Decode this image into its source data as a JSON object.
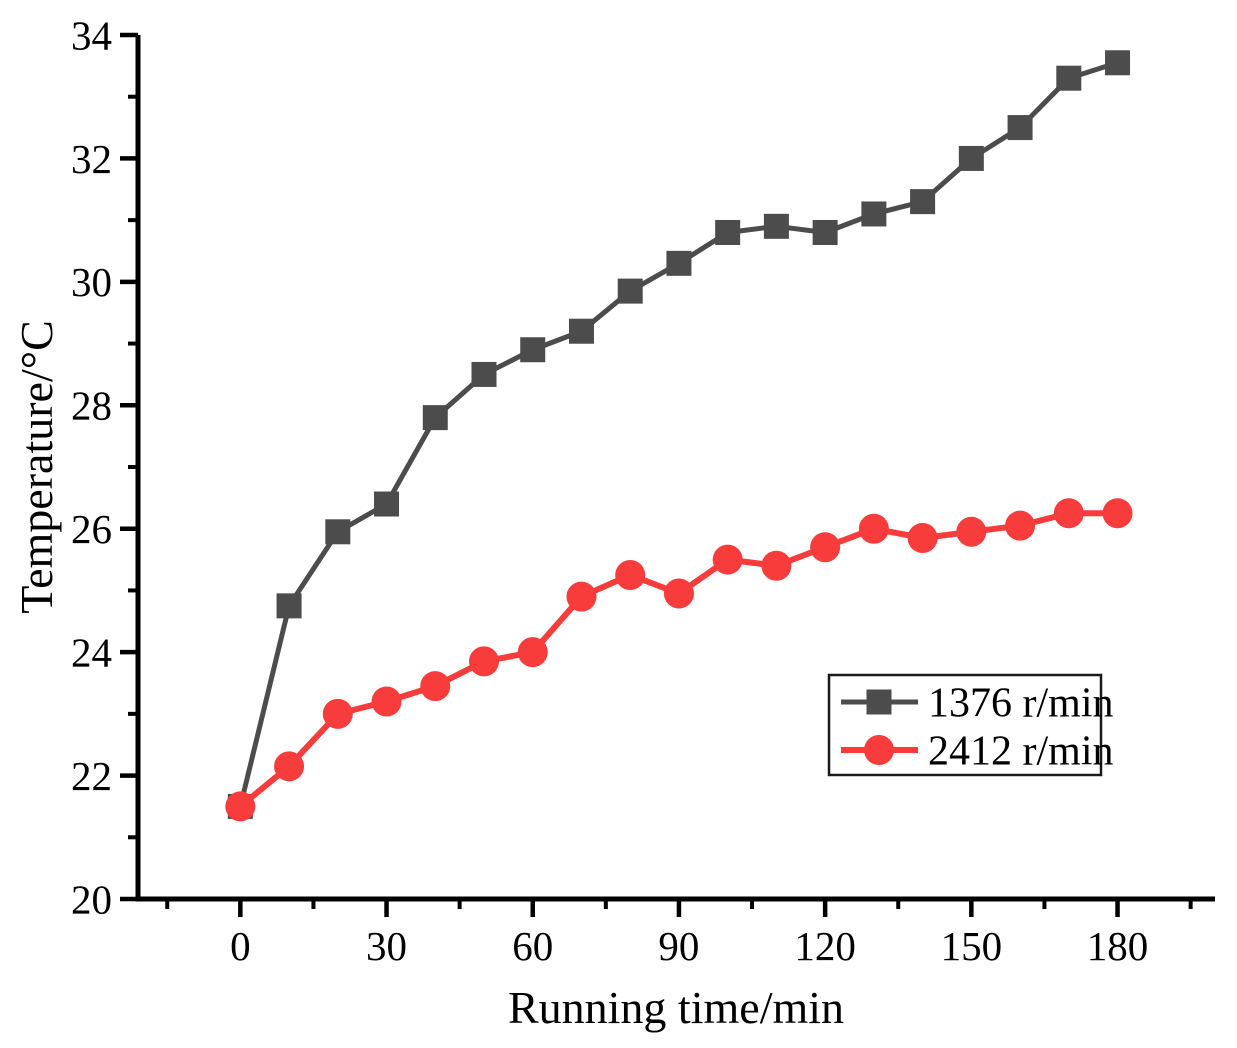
{
  "chart_data": {
    "type": "line",
    "title": "",
    "xlabel": "Running time/min",
    "ylabel": "Temperature/°C",
    "x": [
      0,
      10,
      20,
      30,
      40,
      50,
      60,
      70,
      80,
      90,
      100,
      110,
      120,
      130,
      140,
      150,
      160,
      170,
      180
    ],
    "series": [
      {
        "name": "1376 r/min",
        "color": "#4c4c4c",
        "marker": "square",
        "line_width": 5,
        "values": [
          21.5,
          24.75,
          25.95,
          26.4,
          27.8,
          28.5,
          28.9,
          29.2,
          29.85,
          30.3,
          30.8,
          30.9,
          30.8,
          31.1,
          31.3,
          32.0,
          32.5,
          33.3,
          33.55
        ]
      },
      {
        "name": "2412 r/min",
        "color": "#f83b3b",
        "marker": "circle",
        "line_width": 6,
        "values": [
          21.5,
          22.15,
          23.0,
          23.2,
          23.45,
          23.85,
          24.0,
          24.9,
          25.25,
          24.95,
          25.5,
          25.4,
          25.7,
          26.0,
          25.85,
          25.95,
          26.05,
          26.25,
          26.25
        ]
      }
    ],
    "xlim": [
      -21,
      200
    ],
    "ylim": [
      20,
      34
    ],
    "x_major_ticks": [
      0,
      30,
      60,
      90,
      120,
      150,
      180
    ],
    "x_minor_ticks": [
      -15,
      15,
      45,
      75,
      105,
      135,
      165,
      195
    ],
    "y_major_ticks": [
      20,
      22,
      24,
      26,
      28,
      30,
      32,
      34
    ],
    "y_minor_ticks": [
      21,
      23,
      25,
      27,
      29,
      31,
      33
    ],
    "grid": false,
    "legend_position": "lower-right",
    "legend": [
      "1376 r/min",
      "2412 r/min"
    ],
    "axis_color": "#000000",
    "text_color": "#000000",
    "background": "#ffffff"
  }
}
